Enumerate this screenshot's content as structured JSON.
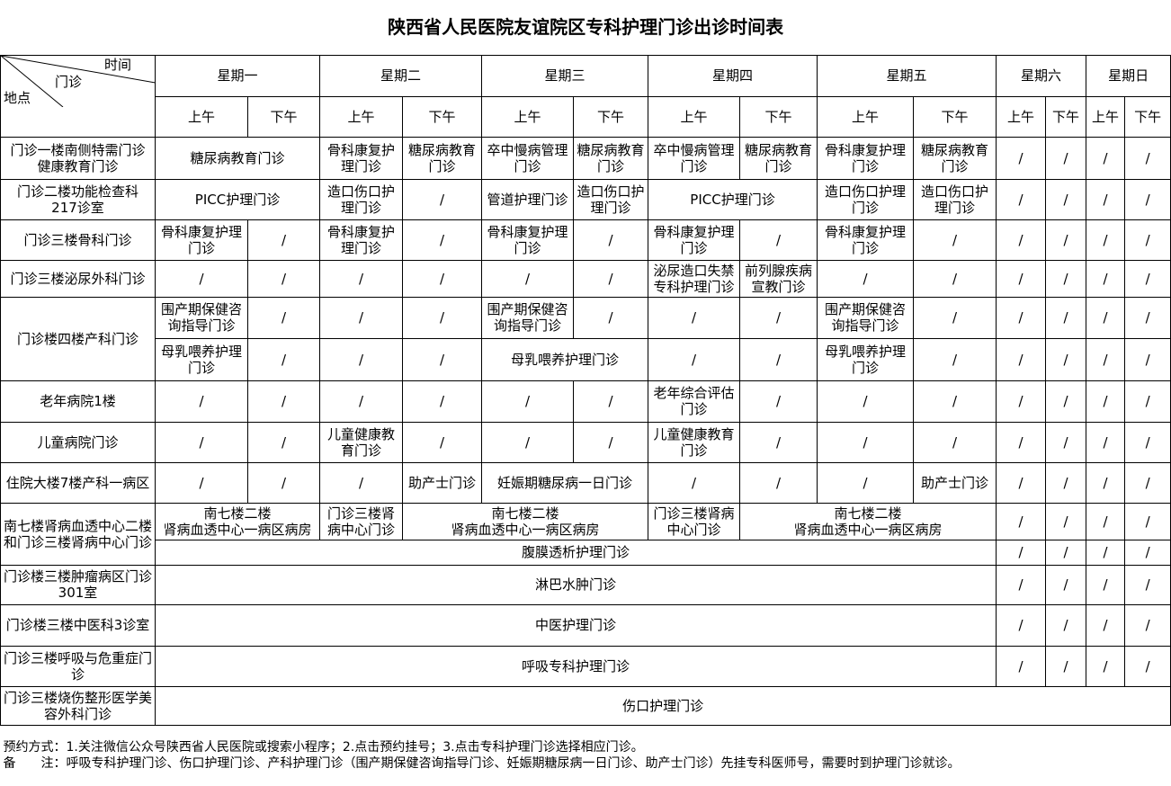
{
  "title": "陕西省人民医院友谊院区专科护理门诊出诊时间表",
  "corner": {
    "time": "时间",
    "clinic": "门诊",
    "place": "地点"
  },
  "days": [
    "星期一",
    "星期二",
    "星期三",
    "星期四",
    "星期五",
    "星期六",
    "星期日"
  ],
  "halves": [
    "上午",
    "下午"
  ],
  "rows": [
    {
      "location": "门诊一楼南侧特需门诊\n健康教育门诊",
      "sub_rows": [
        [
          {
            "t": "糖尿病教育门诊",
            "span": 2
          },
          {
            "t": "骨科康复护理门诊"
          },
          {
            "t": "糖尿病教育门诊"
          },
          {
            "t": "卒中慢病管理门诊"
          },
          {
            "t": "糖尿病教育门诊"
          },
          {
            "t": "卒中慢病管理门诊"
          },
          {
            "t": "糖尿病教育门诊"
          },
          {
            "t": "骨科康复护理门诊"
          },
          {
            "t": "糖尿病教育门诊"
          },
          {
            "t": "/"
          },
          {
            "t": "/"
          },
          {
            "t": "/"
          },
          {
            "t": "/"
          }
        ]
      ]
    },
    {
      "location": "门诊二楼功能检查科\n217诊室",
      "sub_rows": [
        [
          {
            "t": "PICC护理门诊",
            "span": 2
          },
          {
            "t": "造口伤口护理门诊"
          },
          {
            "t": "/"
          },
          {
            "t": "管道护理门诊"
          },
          {
            "t": "造口伤口护理门诊"
          },
          {
            "t": "PICC护理门诊",
            "span": 2
          },
          {
            "t": "造口伤口护理门诊"
          },
          {
            "t": "造口伤口护理门诊"
          },
          {
            "t": "/"
          },
          {
            "t": "/"
          },
          {
            "t": "/"
          },
          {
            "t": "/"
          }
        ]
      ]
    },
    {
      "location": "门诊三楼骨科门诊",
      "sub_rows": [
        [
          {
            "t": "骨科康复护理门诊"
          },
          {
            "t": "/"
          },
          {
            "t": "骨科康复护理门诊"
          },
          {
            "t": "/"
          },
          {
            "t": "骨科康复护理门诊"
          },
          {
            "t": "/"
          },
          {
            "t": "骨科康复护理门诊"
          },
          {
            "t": "/"
          },
          {
            "t": "骨科康复护理门诊"
          },
          {
            "t": "/"
          },
          {
            "t": "/"
          },
          {
            "t": "/"
          },
          {
            "t": "/"
          },
          {
            "t": "/"
          }
        ]
      ]
    },
    {
      "location": "门诊三楼泌尿外科门诊",
      "sub_rows": [
        [
          {
            "t": "/"
          },
          {
            "t": "/"
          },
          {
            "t": "/"
          },
          {
            "t": "/"
          },
          {
            "t": "/"
          },
          {
            "t": "/"
          },
          {
            "t": "泌尿造口失禁专科护理门诊"
          },
          {
            "t": "前列腺疾病宣教门诊"
          },
          {
            "t": "/"
          },
          {
            "t": "/"
          },
          {
            "t": "/"
          },
          {
            "t": "/"
          },
          {
            "t": "/"
          },
          {
            "t": "/"
          }
        ]
      ]
    },
    {
      "location": "门诊楼四楼产科门诊",
      "sub_rows": [
        [
          {
            "t": "围产期保健咨询指导门诊"
          },
          {
            "t": "/"
          },
          {
            "t": "/"
          },
          {
            "t": "/"
          },
          {
            "t": "围产期保健咨询指导门诊"
          },
          {
            "t": "/"
          },
          {
            "t": "/"
          },
          {
            "t": "/"
          },
          {
            "t": "围产期保健咨询指导门诊"
          },
          {
            "t": "/"
          },
          {
            "t": "/"
          },
          {
            "t": "/"
          },
          {
            "t": "/"
          },
          {
            "t": "/"
          }
        ],
        [
          {
            "t": "母乳喂养护理门诊"
          },
          {
            "t": "/"
          },
          {
            "t": "/"
          },
          {
            "t": "/"
          },
          {
            "t": "母乳喂养护理门诊",
            "span": 2
          },
          {
            "t": "/"
          },
          {
            "t": "/"
          },
          {
            "t": "母乳喂养护理门诊"
          },
          {
            "t": "/"
          },
          {
            "t": "/"
          },
          {
            "t": "/"
          },
          {
            "t": "/"
          },
          {
            "t": "/"
          }
        ]
      ]
    },
    {
      "location": "老年病院1楼",
      "sub_rows": [
        [
          {
            "t": "/"
          },
          {
            "t": "/"
          },
          {
            "t": "/"
          },
          {
            "t": "/"
          },
          {
            "t": "/"
          },
          {
            "t": "/"
          },
          {
            "t": "老年综合评估门诊"
          },
          {
            "t": "/"
          },
          {
            "t": "/"
          },
          {
            "t": "/"
          },
          {
            "t": "/"
          },
          {
            "t": "/"
          },
          {
            "t": "/"
          },
          {
            "t": "/"
          }
        ]
      ]
    },
    {
      "location": "儿童病院门诊",
      "sub_rows": [
        [
          {
            "t": "/"
          },
          {
            "t": "/"
          },
          {
            "t": "儿童健康教育门诊"
          },
          {
            "t": "/"
          },
          {
            "t": "/"
          },
          {
            "t": "/"
          },
          {
            "t": "儿童健康教育门诊"
          },
          {
            "t": "/"
          },
          {
            "t": "/"
          },
          {
            "t": "/"
          },
          {
            "t": "/"
          },
          {
            "t": "/"
          },
          {
            "t": "/"
          },
          {
            "t": "/"
          }
        ]
      ]
    },
    {
      "location": "住院大楼7楼产科一病区",
      "sub_rows": [
        [
          {
            "t": "/"
          },
          {
            "t": "/"
          },
          {
            "t": "/"
          },
          {
            "t": "助产士门诊"
          },
          {
            "t": "妊娠期糖尿病一日门诊",
            "span": 2
          },
          {
            "t": "/"
          },
          {
            "t": "/"
          },
          {
            "t": "/"
          },
          {
            "t": "助产士门诊"
          },
          {
            "t": "/"
          },
          {
            "t": "/"
          },
          {
            "t": "/"
          },
          {
            "t": "/"
          }
        ]
      ]
    },
    {
      "location": "南七楼肾病血透中心二楼和门诊三楼肾病中心门诊",
      "sub_rows": [
        [
          {
            "t": "南七楼二楼\n肾病血透中心一病区病房",
            "span": 2
          },
          {
            "t": "门诊三楼肾病中心门诊"
          },
          {
            "t": "南七楼二楼\n肾病血透中心一病区病房",
            "span": 3
          },
          {
            "t": "门诊三楼肾病中心门诊"
          },
          {
            "t": "南七楼二楼\n肾病血透中心一病区病房",
            "span": 3
          },
          {
            "t": "/"
          },
          {
            "t": "/"
          },
          {
            "t": "/"
          },
          {
            "t": "/"
          }
        ],
        [
          {
            "t": "腹膜透析护理门诊",
            "span": 10
          },
          {
            "t": "/"
          },
          {
            "t": "/"
          },
          {
            "t": "/"
          },
          {
            "t": "/"
          }
        ]
      ]
    },
    {
      "location": "门诊楼三楼肿瘤病区门诊301室",
      "sub_rows": [
        [
          {
            "t": "淋巴水肿门诊",
            "span": 10
          },
          {
            "t": "/"
          },
          {
            "t": "/"
          },
          {
            "t": "/"
          },
          {
            "t": "/"
          }
        ]
      ]
    },
    {
      "location": "门诊楼三楼中医科3诊室",
      "sub_rows": [
        [
          {
            "t": "中医护理门诊",
            "span": 10
          },
          {
            "t": "/"
          },
          {
            "t": "/"
          },
          {
            "t": "/"
          },
          {
            "t": "/"
          }
        ]
      ]
    },
    {
      "location": "门诊三楼呼吸与危重症门诊",
      "sub_rows": [
        [
          {
            "t": "呼吸专科护理门诊",
            "span": 10
          },
          {
            "t": "/"
          },
          {
            "t": "/"
          },
          {
            "t": "/"
          },
          {
            "t": "/"
          }
        ]
      ]
    },
    {
      "location": "门诊三楼烧伤整形医学美容外科门诊",
      "sub_rows": [
        [
          {
            "t": "伤口护理门诊",
            "span": 14
          }
        ]
      ]
    }
  ],
  "footer": {
    "booking": "预约方式：1.关注微信公众号陕西省人民医院或搜索小程序；2.点击预约挂号；3.点击专科护理门诊选择相应门诊。",
    "note": "备　　注：呼吸专科护理门诊、伤口护理门诊、产科护理门诊（围产期保健咨询指导门诊、妊娠期糖尿病一日门诊、助产士门诊）先挂专科医师号，需要时到护理门诊就诊。"
  }
}
